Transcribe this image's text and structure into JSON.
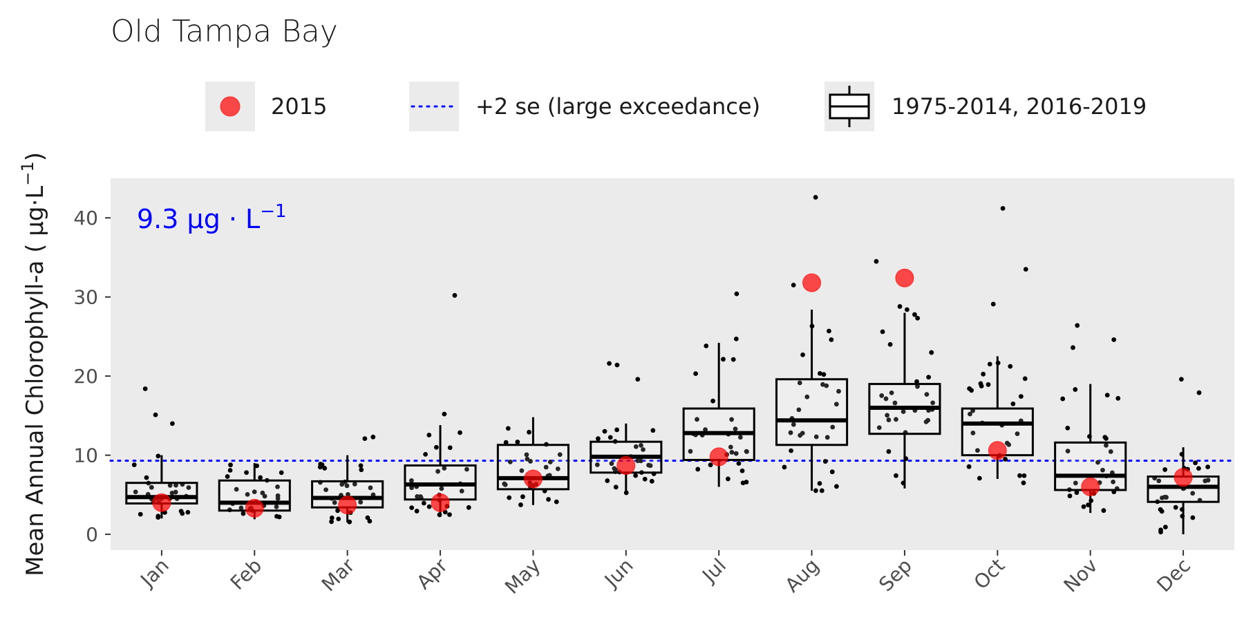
{
  "chart_data": {
    "type": "box",
    "title": "Old Tampa Bay",
    "ylabel": "Mean Annual Chlorophyll-a ( μg·L",
    "ylabel_sup": "−1",
    "ylabel_close": ")",
    "xlabel": "",
    "ylim": [
      -2,
      45
    ],
    "yticks": [
      0,
      10,
      20,
      30,
      40
    ],
    "categories": [
      "Jan",
      "Feb",
      "Mar",
      "Apr",
      "May",
      "Jun",
      "Jul",
      "Aug",
      "Sep",
      "Oct",
      "Nov",
      "Dec"
    ],
    "threshold": {
      "value": 9.3,
      "label": "9.3 μg · L",
      "label_sup": "−1",
      "color": "#0000ff"
    },
    "legend": {
      "position": "top",
      "point_label": "2015",
      "line_label": "+2 se (large exceedance)",
      "box_label": "1975-2014, 2016-2019"
    },
    "boxes": [
      {
        "q1": 3.9,
        "median": 4.7,
        "q3": 6.5,
        "whisker_low": 2.0,
        "whisker_high": 10.0
      },
      {
        "q1": 3.0,
        "median": 4.0,
        "q3": 6.8,
        "whisker_low": 1.9,
        "whisker_high": 9.0
      },
      {
        "q1": 3.4,
        "median": 4.6,
        "q3": 6.7,
        "whisker_low": 1.5,
        "whisker_high": 10.0
      },
      {
        "q1": 4.4,
        "median": 6.3,
        "q3": 8.7,
        "whisker_low": 2.2,
        "whisker_high": 13.8
      },
      {
        "q1": 5.7,
        "median": 7.1,
        "q3": 11.3,
        "whisker_low": 3.7,
        "whisker_high": 14.8
      },
      {
        "q1": 7.8,
        "median": 9.8,
        "q3": 11.7,
        "whisker_low": 5.0,
        "whisker_high": 14.0
      },
      {
        "q1": 9.4,
        "median": 12.8,
        "q3": 15.9,
        "whisker_low": 6.0,
        "whisker_high": 24.2
      },
      {
        "q1": 11.3,
        "median": 14.4,
        "q3": 19.6,
        "whisker_low": 5.5,
        "whisker_high": 28.4
      },
      {
        "q1": 12.7,
        "median": 16.0,
        "q3": 19.0,
        "whisker_low": 5.8,
        "whisker_high": 28.0
      },
      {
        "q1": 10.0,
        "median": 14.0,
        "q3": 15.9,
        "whisker_low": 7.0,
        "whisker_high": 22.5
      },
      {
        "q1": 5.6,
        "median": 7.4,
        "q3": 11.6,
        "whisker_low": 2.7,
        "whisker_high": 19.0
      },
      {
        "q1": 4.1,
        "median": 6.0,
        "q3": 7.3,
        "whisker_low": 0.0,
        "whisker_high": 11.0
      }
    ],
    "outliers": [
      [
        18.4,
        15.1,
        14.0
      ],
      [],
      [
        12.3,
        12.1
      ],
      [
        30.2,
        15.2
      ],
      [],
      [
        21.6,
        21.4,
        19.6
      ],
      [
        30.4,
        24.7
      ],
      [
        42.6,
        31.5,
        24.6
      ],
      [
        34.5,
        28.8,
        28.4,
        24.0
      ],
      [
        41.2,
        33.5,
        29.1,
        6.5
      ],
      [
        26.4,
        24.6,
        23.6
      ],
      [
        19.6,
        17.9
      ]
    ],
    "series_2015": {
      "name": "2015",
      "values": [
        4.0,
        3.3,
        3.7,
        4.0,
        7.0,
        8.7,
        9.8,
        31.8,
        32.4,
        10.6,
        6.0,
        7.2
      ],
      "color": "#ff0000"
    }
  }
}
